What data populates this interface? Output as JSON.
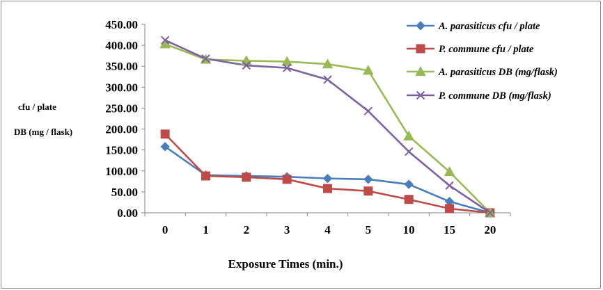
{
  "chart_data": {
    "type": "line",
    "title": "",
    "xlabel": "Exposure Times (min.)",
    "ylabel_lines": [
      "cfu / plate",
      "DB (mg / flask)"
    ],
    "categories": [
      "0",
      "1",
      "2",
      "3",
      "4",
      "5",
      "10",
      "15",
      "20"
    ],
    "ylim": [
      0,
      450
    ],
    "y_ticks": [
      "0.00",
      "50.00",
      "100.00",
      "150.00",
      "200.00",
      "250.00",
      "300.00",
      "350.00",
      "400.00",
      "450.00"
    ],
    "grid": false,
    "legend_position": "top-right",
    "series": [
      {
        "name": "A. parasiticus cfu / plate",
        "color": "#4a7ebb",
        "marker": "diamond",
        "values": [
          158,
          90,
          88,
          86,
          82,
          80,
          68,
          27,
          0
        ]
      },
      {
        "name": "P. commune cfu / plate",
        "color": "#be4b48",
        "marker": "square",
        "values": [
          188,
          88,
          85,
          80,
          58,
          52,
          32,
          10,
          0
        ]
      },
      {
        "name": "A. parasiticus DB (mg/flask)",
        "color": "#98b954",
        "marker": "triangle",
        "values": [
          403,
          366,
          363,
          361,
          355,
          340,
          183,
          98,
          0
        ]
      },
      {
        "name": "P. commune DB (mg/flask)",
        "color": "#7d60a0",
        "marker": "x",
        "values": [
          412,
          368,
          352,
          346,
          318,
          243,
          146,
          65,
          0
        ]
      }
    ]
  }
}
